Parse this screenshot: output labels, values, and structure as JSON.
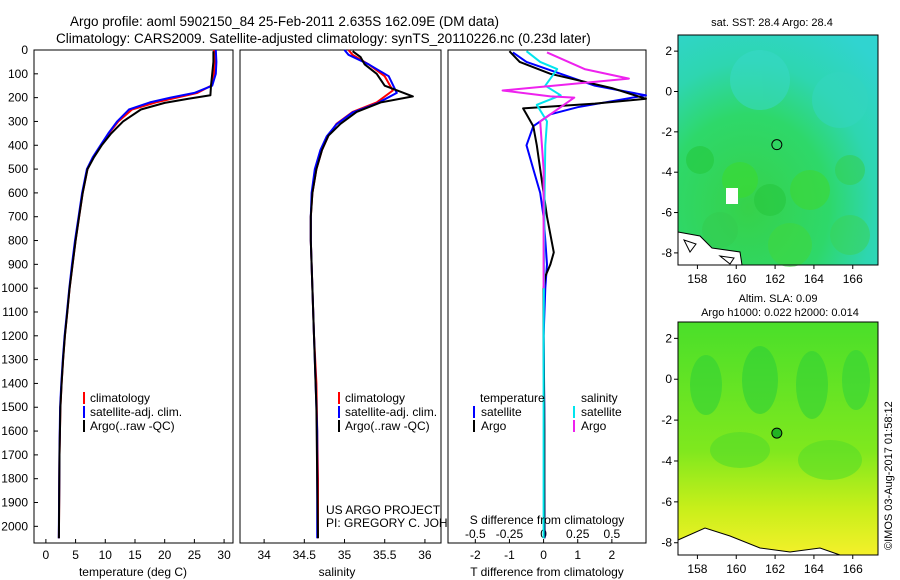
{
  "title_line1": "Argo profile: aoml 5902150_84 25-Feb-2011 2.635S 162.09E (DM data)",
  "title_line2": "Climatology: CARS2009. Satellite-adjusted climatology: synTS_20110226.nc (0.23d later)",
  "colors": {
    "climatology": "#ff0000",
    "satellite": "#0000ff",
    "argo": "#000000",
    "sat_salinity": "#00e5ee",
    "argo_salinity": "#ee22ee"
  },
  "chart_data": [
    {
      "type": "line",
      "title": "",
      "xlabel": "temperature (deg C)",
      "ylabel": "",
      "xlim": [
        -2,
        31.5
      ],
      "ylim": [
        2070,
        0
      ],
      "xticks": [
        0,
        5,
        10,
        15,
        20,
        25,
        30
      ],
      "yticks": [
        0,
        100,
        200,
        300,
        400,
        500,
        600,
        700,
        800,
        900,
        1000,
        1100,
        1200,
        1300,
        1400,
        1500,
        1600,
        1700,
        1800,
        1900,
        2000
      ],
      "legend": [
        "climatology",
        "satellite-adj. clim.",
        "Argo(..raw -QC)"
      ],
      "series": [
        {
          "name": "climatology",
          "color": "#ff0000",
          "x": [
            28.3,
            28.4,
            28.3,
            27.8,
            25.5,
            22.0,
            18.5,
            14.5,
            12.2,
            10.6,
            9.3,
            8.0,
            7.0,
            6.2,
            5.6,
            5.0,
            4.5,
            4.0,
            3.6,
            3.2,
            2.9,
            2.65,
            2.45,
            2.3,
            2.2
          ],
          "y": [
            0,
            50,
            100,
            150,
            180,
            200,
            220,
            250,
            300,
            350,
            400,
            450,
            500,
            600,
            700,
            800,
            900,
            1000,
            1100,
            1200,
            1300,
            1400,
            1500,
            1700,
            2050
          ]
        },
        {
          "name": "satellite-adj. clim.",
          "color": "#0000ff",
          "x": [
            28.6,
            28.7,
            28.6,
            28.0,
            25.0,
            21.0,
            17.5,
            14.0,
            12.0,
            10.5,
            9.2,
            7.9,
            6.9,
            6.1,
            5.5,
            4.9,
            4.4,
            3.95,
            3.55,
            3.15,
            2.85,
            2.6,
            2.4,
            2.28,
            2.18
          ],
          "y": [
            0,
            50,
            100,
            150,
            180,
            200,
            220,
            250,
            300,
            350,
            400,
            450,
            500,
            600,
            700,
            800,
            900,
            1000,
            1100,
            1200,
            1300,
            1400,
            1500,
            1700,
            2050
          ]
        },
        {
          "name": "Argo(..raw -QC)",
          "color": "#000000",
          "x": [
            28.2,
            28.2,
            28.0,
            27.8,
            27.7,
            24.0,
            20.0,
            16.0,
            13.0,
            11.0,
            9.4,
            8.1,
            7.0,
            6.2,
            5.6,
            5.0,
            4.5,
            4.0,
            3.6,
            3.2,
            2.9,
            2.65,
            2.45,
            2.3,
            2.2
          ],
          "y": [
            5,
            50,
            100,
            150,
            190,
            205,
            222,
            250,
            300,
            350,
            400,
            450,
            500,
            600,
            700,
            800,
            900,
            1000,
            1100,
            1200,
            1300,
            1400,
            1500,
            1700,
            2050
          ]
        }
      ]
    },
    {
      "type": "line",
      "xlabel": "salinity",
      "xlim": [
        33.7,
        36.2
      ],
      "ylim": [
        2070,
        0
      ],
      "xticks": [
        34,
        34.5,
        35,
        35.5,
        36
      ],
      "legend": [
        "climatology",
        "satellite-adj. clim.",
        "Argo(..raw -QC)"
      ],
      "series": [
        {
          "name": "climatology",
          "color": "#ff0000",
          "x": [
            35.05,
            35.1,
            35.3,
            35.5,
            35.6,
            35.4,
            35.1,
            34.9,
            34.8,
            34.72,
            34.65,
            34.6,
            34.58,
            34.58,
            34.6,
            34.62,
            34.65,
            34.66,
            34.67,
            34.67
          ],
          "y": [
            0,
            20,
            60,
            110,
            170,
            220,
            260,
            310,
            360,
            420,
            500,
            600,
            700,
            800,
            1000,
            1200,
            1400,
            1600,
            1800,
            2050
          ]
        },
        {
          "name": "satellite-adj. clim.",
          "color": "#0000ff",
          "x": [
            35.0,
            35.05,
            35.3,
            35.55,
            35.65,
            35.4,
            35.1,
            34.9,
            34.78,
            34.7,
            34.63,
            34.59,
            34.58,
            34.58,
            34.6,
            34.62,
            34.64,
            34.66,
            34.66,
            34.66
          ],
          "y": [
            0,
            20,
            60,
            110,
            180,
            225,
            262,
            312,
            362,
            420,
            500,
            600,
            700,
            800,
            1000,
            1200,
            1400,
            1600,
            1800,
            2050
          ]
        },
        {
          "name": "Argo(..raw -QC)",
          "color": "#000000",
          "x": [
            35.1,
            35.2,
            35.25,
            35.4,
            35.5,
            35.85,
            35.45,
            35.15,
            34.95,
            34.8,
            34.72,
            34.65,
            34.6,
            34.58,
            34.58,
            34.6,
            34.62,
            34.65,
            34.66,
            34.67
          ],
          "y": [
            5,
            30,
            60,
            100,
            150,
            195,
            220,
            260,
            310,
            360,
            420,
            500,
            600,
            700,
            800,
            1000,
            1200,
            1500,
            1800,
            2050
          ]
        }
      ]
    },
    {
      "type": "line",
      "xlabel_top": "S difference from climatology",
      "xlabel": "T difference from climatology",
      "xlim_T": [
        -2.8,
        3.0
      ],
      "xticks_T": [
        -2,
        -1,
        0,
        1,
        2
      ],
      "xticks_S": [
        -0.5,
        -0.25,
        0,
        0.25,
        0.5
      ],
      "legend_temperature": [
        "satellite",
        "Argo"
      ],
      "legend_salinity": [
        "satellite",
        "Argo"
      ],
      "legend_heading_temperature": "temperature",
      "legend_heading_salinity": "salinity",
      "series": [
        {
          "name": "temperature satellite",
          "color": "#0000ff",
          "x": [
            -0.9,
            -0.5,
            0.5,
            1.5,
            3.0,
            2.0,
            1.0,
            0.2,
            -0.3,
            -0.5,
            -0.3,
            -0.1,
            0,
            0.05,
            0.1,
            0.05,
            0,
            0.02,
            0.02,
            0.03
          ],
          "y": [
            10,
            50,
            100,
            150,
            190,
            215,
            240,
            270,
            320,
            400,
            500,
            600,
            700,
            800,
            900,
            1000,
            1200,
            1500,
            1800,
            2050
          ]
        },
        {
          "name": "temperature Argo",
          "color": "#000000",
          "x": [
            -1.0,
            -0.7,
            0.2,
            2.0,
            3.0,
            1.5,
            -0.6,
            -0.5,
            -0.3,
            -0.2,
            -0.1,
            0,
            0.1,
            0.3,
            0.2,
            0.05,
            0,
            0,
            0.02,
            0.02
          ],
          "y": [
            5,
            50,
            100,
            160,
            205,
            225,
            245,
            270,
            320,
            400,
            500,
            600,
            700,
            850,
            900,
            950,
            1000,
            1200,
            1600,
            2050
          ]
        },
        {
          "name": "salinity satellite",
          "color": "#00e5ee",
          "x": [
            -0.5,
            -0.1,
            0.4,
            0.05,
            0.5,
            -0.2,
            0.1,
            0.05,
            0.03,
            0.02,
            0.01,
            0,
            0,
            0,
            0
          ],
          "y": [
            5,
            50,
            80,
            150,
            190,
            230,
            300,
            400,
            600,
            800,
            1000,
            1200,
            1500,
            1800,
            2050
          ]
        },
        {
          "name": "salinity Argo",
          "color": "#ee22ee",
          "x": [
            0.1,
            1.2,
            2.5,
            -1.2,
            0.2,
            0.9,
            -0.1,
            0,
            0,
            0
          ],
          "y": [
            10,
            80,
            120,
            170,
            195,
            200,
            300,
            500,
            800,
            1000
          ]
        }
      ]
    },
    {
      "type": "heatmap",
      "title": "sat. SST: 28.4  Argo: 28.4",
      "xticks": [
        158,
        160,
        162,
        164,
        166
      ],
      "yticks": [
        2,
        0,
        -2,
        -4,
        -6,
        -8
      ],
      "marker": {
        "lon": 162.09,
        "lat": -2.635
      }
    },
    {
      "type": "heatmap",
      "title_line1": "Altim. SLA: 0.09",
      "title_line2": "Argo h1000: 0.022 h2000: 0.014",
      "xticks": [
        158,
        160,
        162,
        164,
        166
      ],
      "yticks": [
        2,
        0,
        -2,
        -4,
        -6,
        -8
      ],
      "marker": {
        "lon": 162.09,
        "lat": -2.635
      }
    }
  ],
  "annotation": {
    "project": "US ARGO PROJECT",
    "pi": "PI: GREGORY C. JOHNSON",
    "credit": "©IMOS 03-Aug-2017 01:58:12"
  }
}
